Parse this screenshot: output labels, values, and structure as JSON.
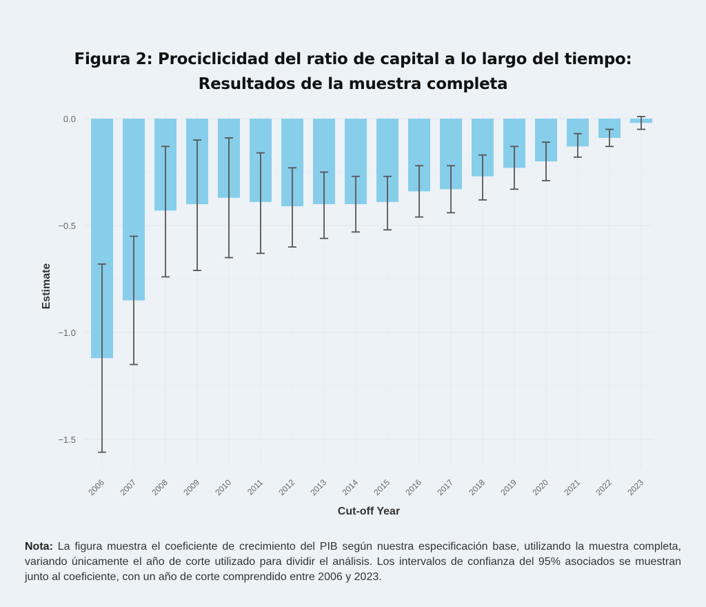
{
  "title_line1": "Figura 2: Prociclicidad del ratio de capital a lo largo del tiempo:",
  "title_line2": "Resultados de la muestra completa",
  "note": {
    "label": "Nota:",
    "text": " La figura muestra el coeficiente de crecimiento del PIB según nuestra especificación base, utilizando la muestra completa, variando únicamente el año de corte utilizado para dividir el análisis. Los intervalos de confianza del 95% asociados se muestran junto al coeficiente, con un año de corte comprendido entre 2006 y 2023."
  },
  "chart_data": {
    "type": "bar",
    "title": "",
    "xlabel": "Cut-off Year",
    "ylabel": "Estimate",
    "ylim": [
      -1.6,
      0.0
    ],
    "yticks": [
      0.0,
      -0.5,
      -1.0,
      -1.5
    ],
    "ytick_labels": [
      "0.0",
      "−0.5",
      "−1.0",
      "−1.5"
    ],
    "grid": true,
    "bar_color": "#87ceeb",
    "errorbar_color": "#555555",
    "categories": [
      "2006",
      "2007",
      "2008",
      "2009",
      "2010",
      "2011",
      "2012",
      "2013",
      "2014",
      "2015",
      "2016",
      "2017",
      "2018",
      "2019",
      "2020",
      "2021",
      "2022",
      "2023"
    ],
    "values": [
      -1.12,
      -0.85,
      -0.43,
      -0.4,
      -0.37,
      -0.39,
      -0.41,
      -0.4,
      -0.4,
      -0.39,
      -0.34,
      -0.33,
      -0.27,
      -0.23,
      -0.2,
      -0.13,
      -0.09,
      -0.02
    ],
    "ci_upper": [
      -0.68,
      -0.55,
      -0.13,
      -0.1,
      -0.09,
      -0.16,
      -0.23,
      -0.25,
      -0.27,
      -0.27,
      -0.22,
      -0.22,
      -0.17,
      -0.13,
      -0.11,
      -0.07,
      -0.05,
      0.01
    ],
    "ci_lower": [
      -1.56,
      -1.15,
      -0.74,
      -0.71,
      -0.65,
      -0.63,
      -0.6,
      -0.56,
      -0.53,
      -0.52,
      -0.46,
      -0.44,
      -0.38,
      -0.33,
      -0.29,
      -0.18,
      -0.13,
      -0.05
    ]
  }
}
